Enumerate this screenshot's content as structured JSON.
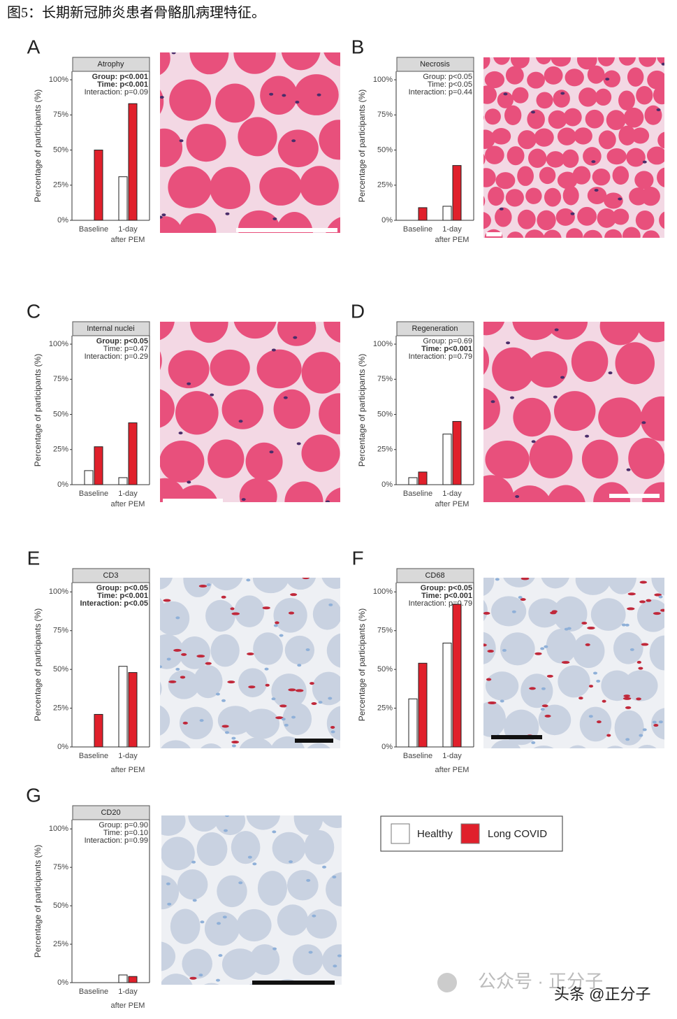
{
  "title": "图5：长期新冠肺炎患者骨骼肌病理特征。",
  "legend": [
    {
      "name": "Healthy",
      "color": "#ffffff"
    },
    {
      "name": "Long COVID",
      "color": "#e0202b"
    }
  ],
  "watermark": [
    "公众号 · 正分子",
    "头条 @正分子"
  ],
  "chart_data": [
    {
      "type": "bar",
      "panel": "A",
      "title": "Atrophy",
      "ylabel": "Percentage of participants (%)",
      "annotations": [
        "Group: p<0.001",
        "Time: p<0.001",
        "Interaction: p=0.09"
      ],
      "annotation_bold": [
        true,
        true,
        false
      ],
      "categories": [
        "Baseline",
        "1-day"
      ],
      "category_note": "after PEM",
      "series": [
        {
          "values": [
            0,
            31
          ]
        },
        {
          "values": [
            50,
            83
          ]
        }
      ],
      "ylim": [
        0,
        106
      ],
      "yticks": [
        {
          "value": 0,
          "label": "0%"
        },
        {
          "value": 25,
          "label": "25%"
        },
        {
          "value": 50,
          "label": "50%"
        },
        {
          "value": 75,
          "label": "75%"
        },
        {
          "value": 100,
          "label": "100%"
        }
      ]
    },
    {
      "type": "bar",
      "panel": "B",
      "title": "Necrosis",
      "ylabel": "Percentage of participants (%)",
      "annotations": [
        "Group: p<0.05",
        "Time: p<0.05",
        "Interaction: p=0.44"
      ],
      "annotation_bold": [
        false,
        false,
        false
      ],
      "categories": [
        "Baseline",
        "1-day"
      ],
      "category_note": "after PEM",
      "series": [
        {
          "values": [
            0,
            10
          ]
        },
        {
          "values": [
            9,
            39
          ]
        }
      ],
      "ylim": [
        0,
        106
      ],
      "yticks": [
        {
          "value": 0,
          "label": "0%"
        },
        {
          "value": 25,
          "label": "25%"
        },
        {
          "value": 50,
          "label": "50%"
        },
        {
          "value": 75,
          "label": "75%"
        },
        {
          "value": 100,
          "label": "100%"
        }
      ]
    },
    {
      "type": "bar",
      "panel": "C",
      "title": "Internal nuclei",
      "ylabel": "Percentage of participants (%)",
      "annotations": [
        "Group: p<0.05",
        "Time: p=0.47",
        "Interaction: p=0.29"
      ],
      "annotation_bold": [
        true,
        false,
        false
      ],
      "categories": [
        "Baseline",
        "1-day"
      ],
      "category_note": "after PEM",
      "series": [
        {
          "values": [
            10,
            5
          ]
        },
        {
          "values": [
            27,
            44
          ]
        }
      ],
      "ylim": [
        0,
        106
      ],
      "yticks": [
        {
          "value": 0,
          "label": "0%"
        },
        {
          "value": 25,
          "label": "25%"
        },
        {
          "value": 50,
          "label": "50%"
        },
        {
          "value": 75,
          "label": "75%"
        },
        {
          "value": 100,
          "label": "100%"
        }
      ]
    },
    {
      "type": "bar",
      "panel": "D",
      "title": "Regeneration",
      "ylabel": "Percentage of participants (%)",
      "annotations": [
        "Group: p=0.69",
        "Time: p<0.001",
        "Interaction: p=0.79"
      ],
      "annotation_bold": [
        false,
        true,
        false
      ],
      "categories": [
        "Baseline",
        "1-day"
      ],
      "category_note": "after PEM",
      "series": [
        {
          "values": [
            5,
            36
          ]
        },
        {
          "values": [
            9,
            45
          ]
        }
      ],
      "ylim": [
        0,
        106
      ],
      "yticks": [
        {
          "value": 0,
          "label": "0%"
        },
        {
          "value": 25,
          "label": "25%"
        },
        {
          "value": 50,
          "label": "50%"
        },
        {
          "value": 75,
          "label": "75%"
        },
        {
          "value": 100,
          "label": "100%"
        }
      ]
    },
    {
      "type": "bar",
      "panel": "E",
      "title": "CD3",
      "ylabel": "Percentage of participants (%)",
      "annotations": [
        "Group: p<0.05",
        "Time: p<0.001",
        "Interaction: p<0.05"
      ],
      "annotation_bold": [
        true,
        true,
        true
      ],
      "categories": [
        "Baseline",
        "1-day"
      ],
      "category_note": "after PEM",
      "series": [
        {
          "values": [
            0,
            52
          ]
        },
        {
          "values": [
            21,
            48
          ]
        }
      ],
      "ylim": [
        0,
        106
      ],
      "yticks": [
        {
          "value": 0,
          "label": "0%"
        },
        {
          "value": 25,
          "label": "25%"
        },
        {
          "value": 50,
          "label": "50%"
        },
        {
          "value": 75,
          "label": "75%"
        },
        {
          "value": 100,
          "label": "100%"
        }
      ]
    },
    {
      "type": "bar",
      "panel": "F",
      "title": "CD68",
      "ylabel": "Percentage of participants (%)",
      "annotations": [
        "Group: p<0.05",
        "Time: p<0.001",
        "Interaction: p=0.79"
      ],
      "annotation_bold": [
        true,
        true,
        false
      ],
      "categories": [
        "Baseline",
        "1-day"
      ],
      "category_note": "after PEM",
      "series": [
        {
          "values": [
            31,
            67
          ]
        },
        {
          "values": [
            54,
            92
          ]
        }
      ],
      "ylim": [
        0,
        106
      ],
      "yticks": [
        {
          "value": 0,
          "label": "0%"
        },
        {
          "value": 25,
          "label": "25%"
        },
        {
          "value": 50,
          "label": "50%"
        },
        {
          "value": 75,
          "label": "75%"
        },
        {
          "value": 100,
          "label": "100%"
        }
      ]
    },
    {
      "type": "bar",
      "panel": "G",
      "title": "CD20",
      "ylabel": "Percentage of participants (%)",
      "annotations": [
        "Group: p=0.90",
        "Time: p=0.10",
        "Interaction: p=0.99"
      ],
      "annotation_bold": [
        false,
        false,
        false
      ],
      "categories": [
        "Baseline",
        "1-day"
      ],
      "category_note": "after PEM",
      "series": [
        {
          "values": [
            0,
            5
          ]
        },
        {
          "values": [
            0,
            4
          ]
        }
      ],
      "ylim": [
        0,
        106
      ],
      "yticks": [
        {
          "value": 0,
          "label": "0%"
        },
        {
          "value": 25,
          "label": "25%"
        },
        {
          "value": 50,
          "label": "50%"
        },
        {
          "value": 75,
          "label": "75%"
        },
        {
          "value": 100,
          "label": "100%"
        }
      ]
    }
  ]
}
